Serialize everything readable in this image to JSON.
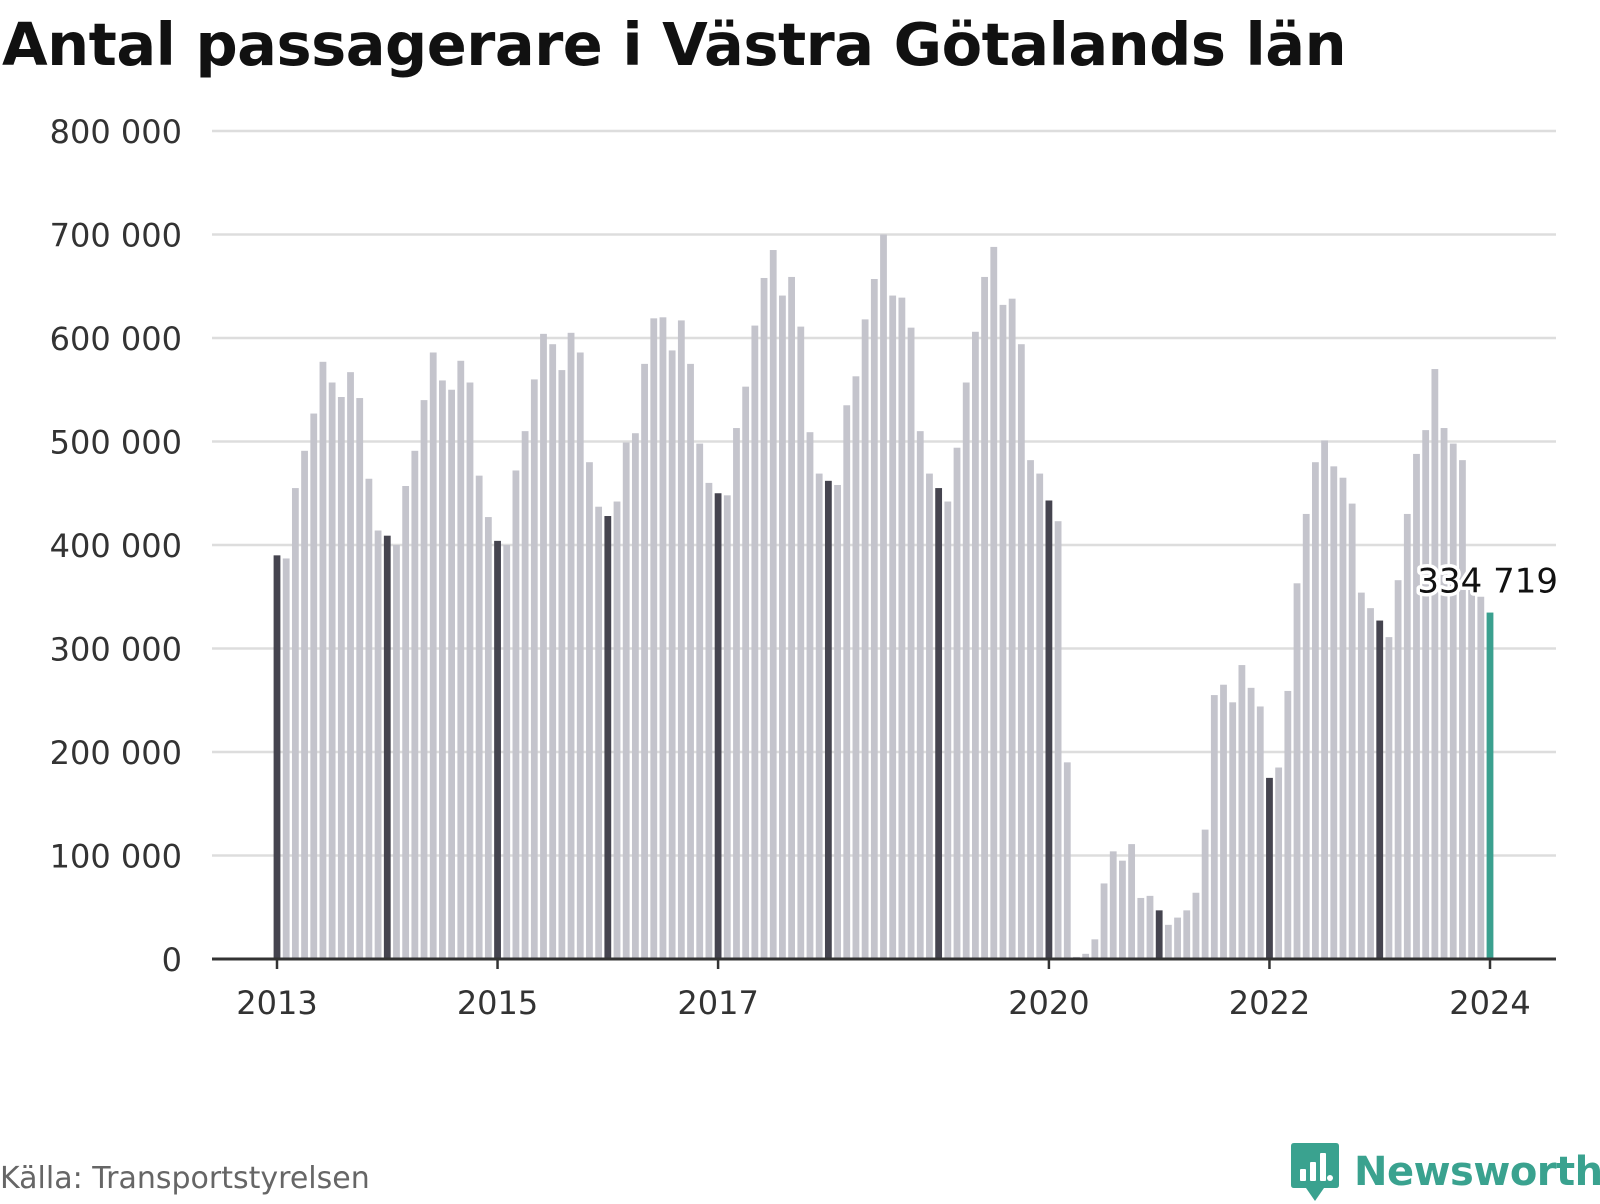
{
  "header": {
    "title": "Antal passagerare i Västra Götalands län"
  },
  "footer": {
    "source": "Källa: Transportstyrelsen",
    "brand": "Newsworthy"
  },
  "colors": {
    "highlight": "#3aa08f",
    "january": "#45444f",
    "other": "#c4c4cc",
    "grid": "#dddddd",
    "axis": "#333333"
  },
  "chart_data": {
    "type": "bar",
    "title": "Antal passagerare i Västra Götalands län",
    "xlabel": "",
    "ylabel": "",
    "ylim": [
      0,
      800000
    ],
    "yticks": [
      0,
      100000,
      200000,
      300000,
      400000,
      500000,
      600000,
      700000,
      800000
    ],
    "ytick_labels": [
      "0",
      "100 000",
      "200 000",
      "300 000",
      "400 000",
      "500 000",
      "600 000",
      "700 000",
      "800 000"
    ],
    "xtick_labels": [
      {
        "label": "2013",
        "index": 0
      },
      {
        "label": "2015",
        "index": 24
      },
      {
        "label": "2017",
        "index": 48
      },
      {
        "label": "2020",
        "index": 84
      },
      {
        "label": "2022",
        "index": 108
      },
      {
        "label": "2024",
        "index": 132
      }
    ],
    "start": "2013-01",
    "annotation": {
      "index": 132,
      "text": "334 719"
    },
    "grid": true,
    "values": [
      390000,
      387000,
      455000,
      491000,
      527000,
      577000,
      557000,
      543000,
      567000,
      542000,
      464000,
      414000,
      409000,
      400000,
      457000,
      491000,
      540000,
      586000,
      559000,
      550000,
      578000,
      557000,
      467000,
      427000,
      404000,
      400000,
      472000,
      510000,
      560000,
      604000,
      594000,
      569000,
      605000,
      586000,
      480000,
      437000,
      428000,
      442000,
      499000,
      508000,
      575000,
      619000,
      620000,
      588000,
      617000,
      575000,
      498000,
      460000,
      450000,
      448000,
      513000,
      553000,
      612000,
      658000,
      685000,
      641000,
      659000,
      611000,
      509000,
      469000,
      462000,
      458000,
      535000,
      563000,
      618000,
      657000,
      700000,
      641000,
      639000,
      610000,
      510000,
      469000,
      455000,
      442000,
      494000,
      557000,
      606000,
      659000,
      688000,
      632000,
      638000,
      594000,
      482000,
      469000,
      443000,
      423000,
      190000,
      2000,
      5000,
      19000,
      73000,
      104000,
      95000,
      111000,
      59000,
      61000,
      47000,
      33000,
      40000,
      47000,
      64000,
      125000,
      255000,
      265000,
      248000,
      284000,
      262000,
      244000,
      175000,
      185000,
      259000,
      363000,
      430000,
      480000,
      501000,
      476000,
      465000,
      440000,
      354000,
      339000,
      327000,
      311000,
      366000,
      430000,
      488000,
      511000,
      570000,
      513000,
      498000,
      482000,
      360000,
      350000,
      334719
    ]
  }
}
